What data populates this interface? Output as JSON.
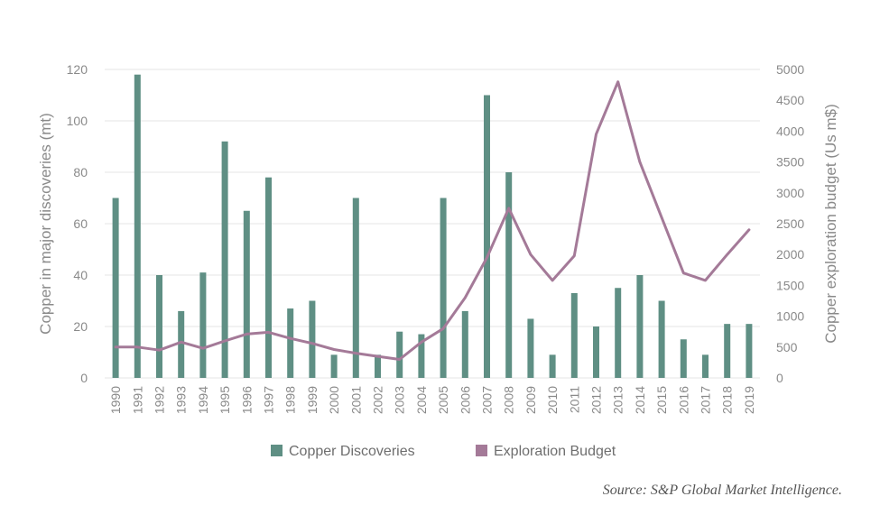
{
  "chart_data": {
    "type": "bar",
    "x": [
      "1990",
      "1991",
      "1992",
      "1993",
      "1994",
      "1995",
      "1996",
      "1997",
      "1998",
      "1999",
      "2000",
      "2001",
      "2002",
      "2003",
      "2004",
      "2005",
      "2006",
      "2007",
      "2008",
      "2009",
      "2010",
      "2011",
      "2012",
      "2013",
      "2014",
      "2015",
      "2016",
      "2017",
      "2018",
      "2019"
    ],
    "series": [
      {
        "name": "Copper Discoveries",
        "type": "bar",
        "axis": "left",
        "color": "#5f8f84",
        "values": [
          70,
          118,
          40,
          26,
          41,
          92,
          65,
          78,
          27,
          30,
          9,
          70,
          9,
          18,
          17,
          70,
          26,
          110,
          80,
          23,
          9,
          33,
          20,
          35,
          40,
          30,
          15,
          9,
          21,
          21
        ]
      },
      {
        "name": "Exploration Budget",
        "type": "line",
        "axis": "right",
        "color": "#a47a98",
        "values": [
          500,
          500,
          450,
          580,
          480,
          600,
          710,
          740,
          640,
          560,
          460,
          400,
          350,
          300,
          580,
          800,
          1300,
          1950,
          2750,
          2000,
          1580,
          1980,
          3950,
          4800,
          3500,
          2600,
          1700,
          1580,
          2000,
          2400
        ]
      }
    ],
    "yaxis_left": {
      "label": "Copper in major discoveries (mt)",
      "range": [
        0,
        120
      ],
      "ticks": [
        "0",
        "20",
        "40",
        "60",
        "80",
        "100",
        "120"
      ]
    },
    "yaxis_right": {
      "label": "Copper exploration budget (Us m$)",
      "range": [
        0,
        5000
      ],
      "ticks": [
        "0",
        "500",
        "1000",
        "1500",
        "2000",
        "2500",
        "3000",
        "3500",
        "4000",
        "4500",
        "5000"
      ]
    },
    "grid": "horizontal",
    "legend_position": "bottom",
    "source": "Source: S&P Global Market Intelligence."
  }
}
